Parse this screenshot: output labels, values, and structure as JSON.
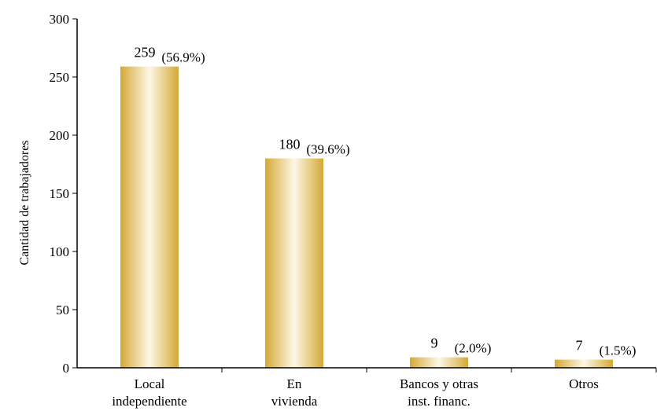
{
  "chart_data": {
    "type": "bar",
    "title": "",
    "xlabel": "",
    "ylabel": "Cantidad de trabajadores",
    "ylim": [
      0,
      300
    ],
    "yticks": [
      0,
      50,
      100,
      150,
      200,
      250,
      300
    ],
    "categories": [
      [
        "Local",
        "independiente"
      ],
      [
        "En",
        "vivienda"
      ],
      [
        "Bancos y otras",
        "inst. financ."
      ],
      [
        "Otros"
      ]
    ],
    "values": [
      259,
      180,
      9,
      7
    ],
    "percent_labels": [
      "(56.9%)",
      "(39.6%)",
      "(2.0%)",
      "(1.5%)"
    ],
    "grid": false,
    "legend": "none",
    "colors": {
      "bar_edge": "#d4a937",
      "bar_center": "#fdf7e6",
      "axis": "#000000"
    }
  }
}
